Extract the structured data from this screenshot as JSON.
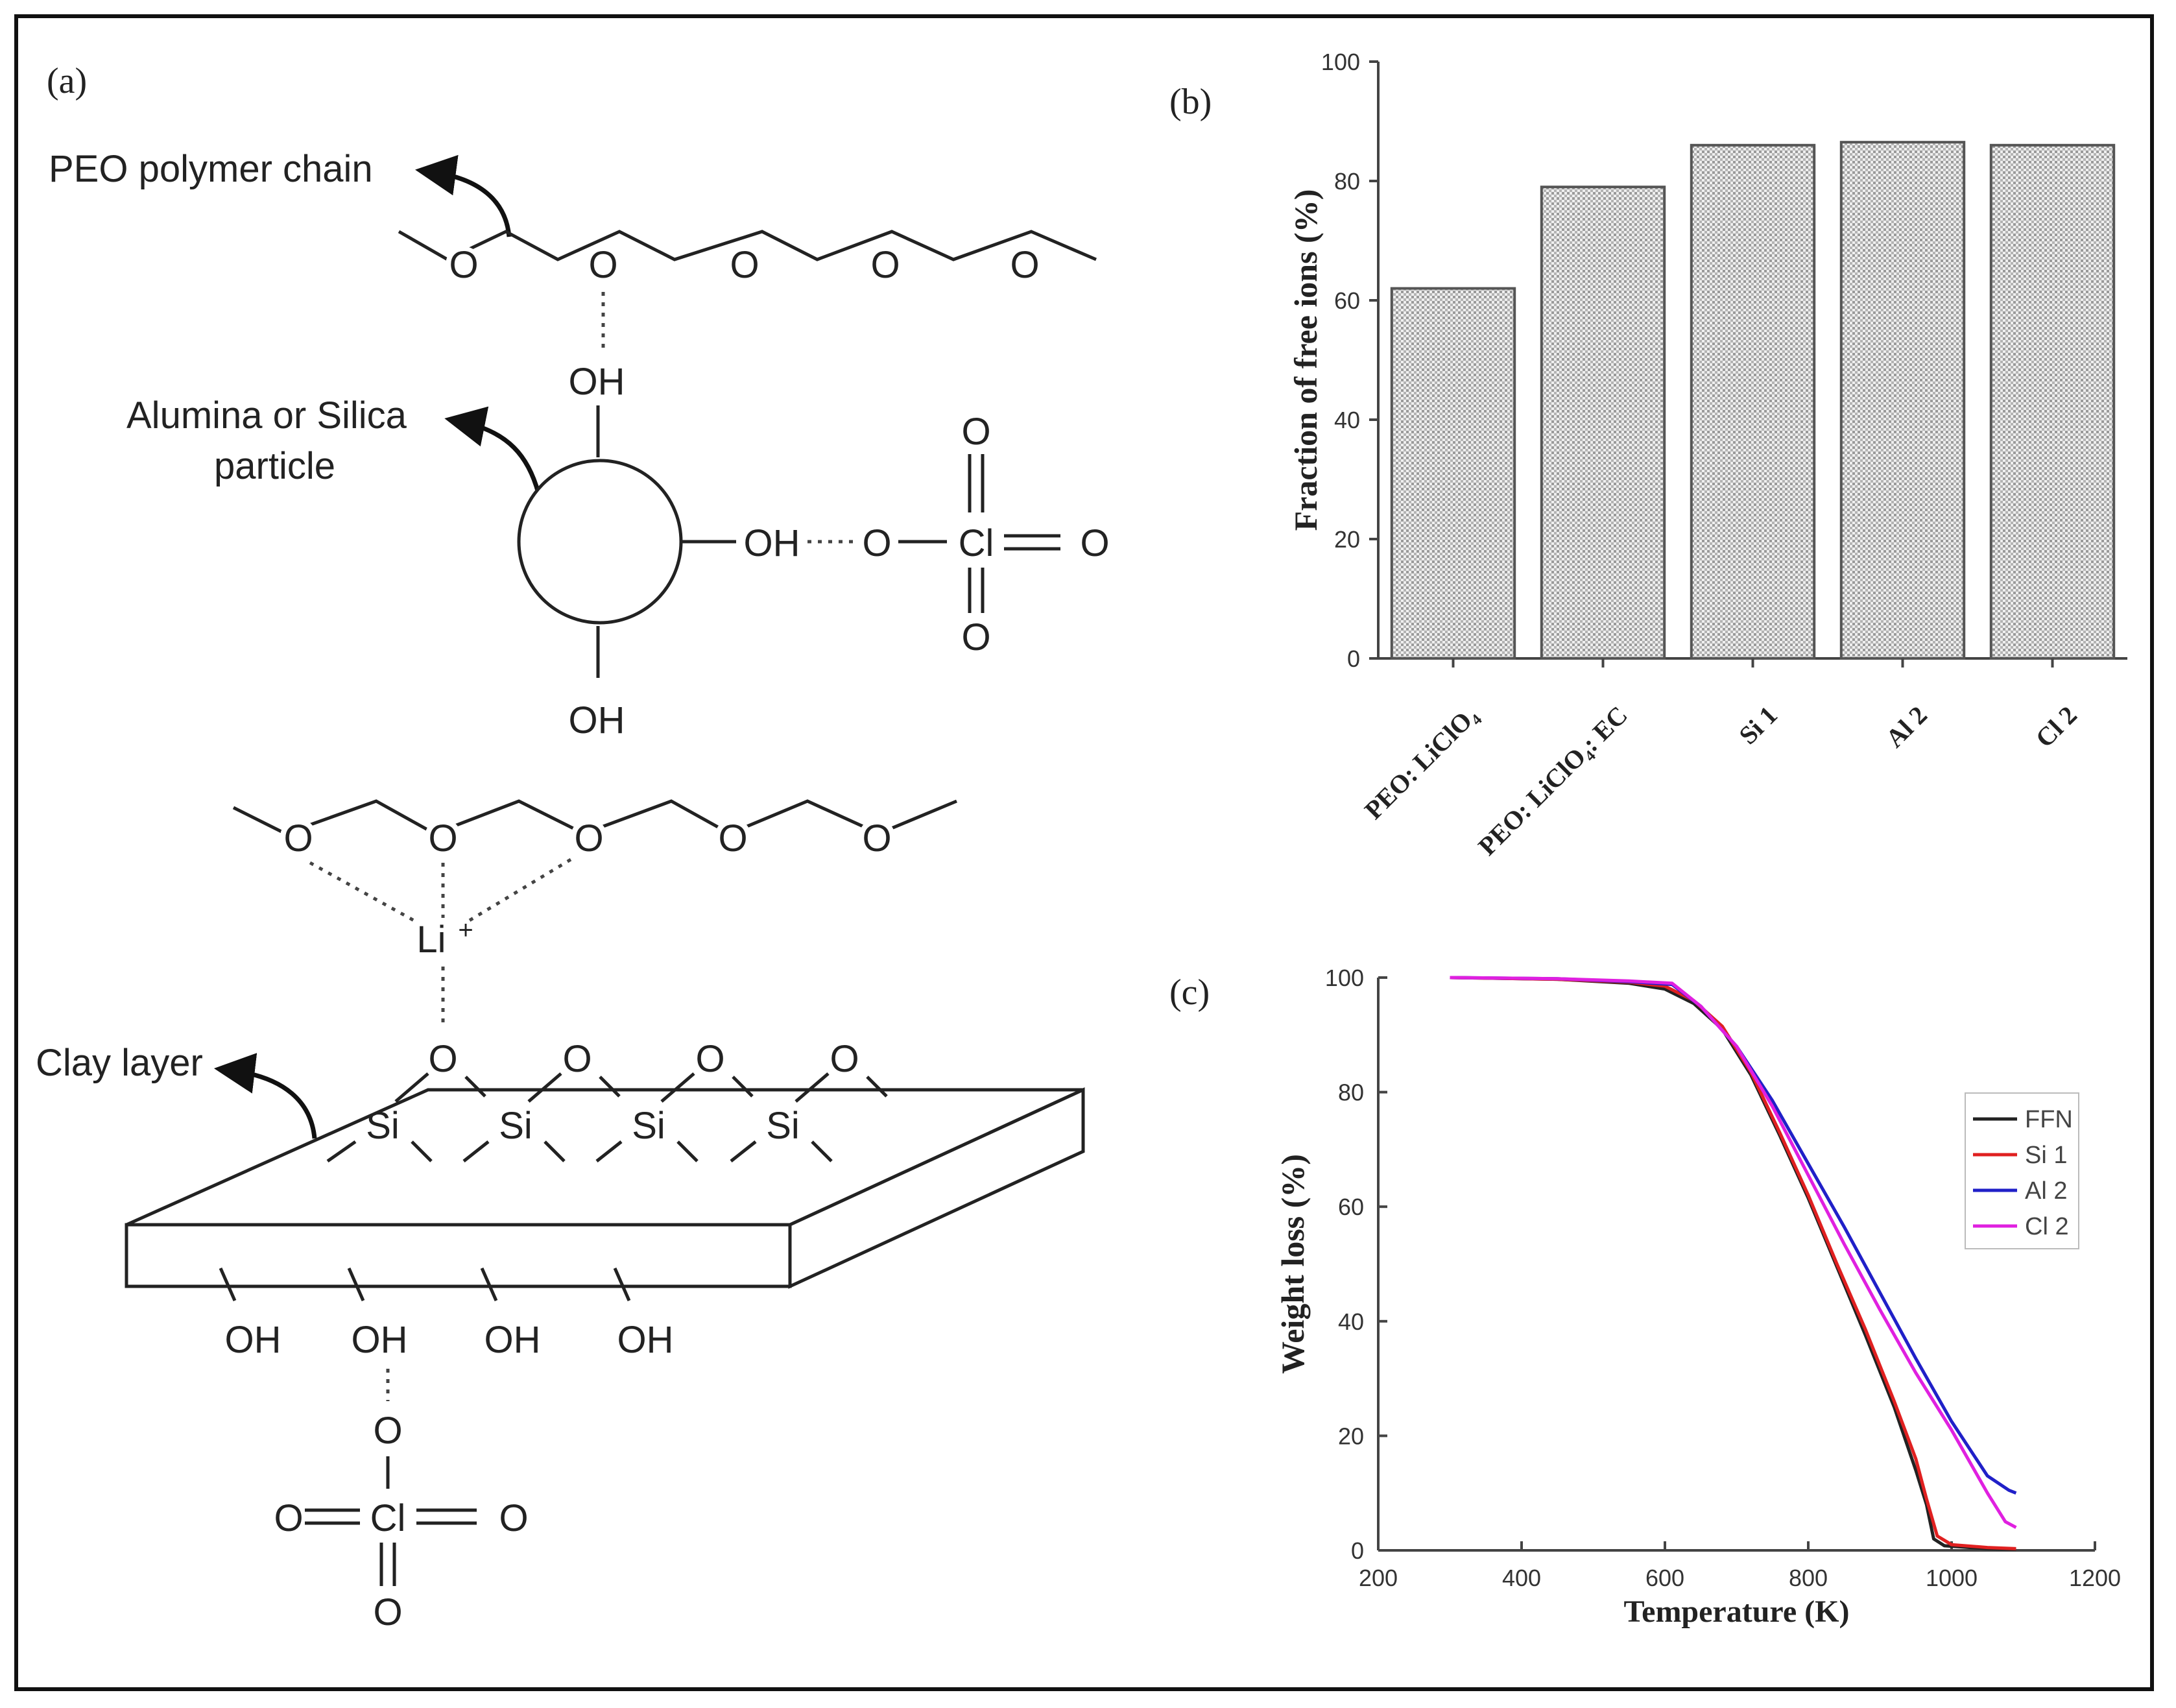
{
  "panel_a": {
    "label": "(a)",
    "peo_chain_label": "PEO polymer chain",
    "particle_label_line1": "Alumina or Silica",
    "particle_label_line2": "particle",
    "clay_label": "Clay layer",
    "oxygen": "O",
    "hydroxyl": "OH",
    "hydroxyl_bonded": "-OH",
    "chlorine": "Cl",
    "silicon": "Si",
    "lithium": "Li",
    "plus": "+"
  },
  "panel_b": {
    "label": "(b)"
  },
  "panel_c": {
    "label": "(c)"
  },
  "chart_data": [
    {
      "type": "bar",
      "panel": "b",
      "categories": [
        "PEO: LiClO₄",
        "PEO: LiClO₄: EC",
        "Si 1",
        "Al 2",
        "Cl 2"
      ],
      "values": [
        62,
        79,
        86,
        86.5,
        86
      ],
      "ylabel": "Fraction of free ions  (%)",
      "xlabel": "",
      "ylim": [
        0,
        100
      ],
      "yticks": [
        0,
        20,
        40,
        60,
        80,
        100
      ],
      "colors": {
        "bar_fill": "#d6d6d6",
        "bar_edge": "#555555"
      }
    },
    {
      "type": "line",
      "panel": "c",
      "xlabel": "Temperature (K)",
      "ylabel": "Weight loss  (%)",
      "xlim": [
        200,
        1200
      ],
      "ylim": [
        0,
        100
      ],
      "xticks": [
        200,
        400,
        600,
        800,
        1000,
        1200
      ],
      "yticks": [
        0,
        20,
        40,
        60,
        80,
        100
      ],
      "legend_position": "right",
      "series": [
        {
          "name": "FFN",
          "color": "#222222",
          "x": [
            300,
            450,
            550,
            600,
            640,
            680,
            720,
            760,
            800,
            840,
            880,
            920,
            950,
            965,
            975,
            990,
            1050,
            1090
          ],
          "y": [
            100,
            99.7,
            99,
            98,
            95.5,
            91,
            83,
            72.5,
            61.5,
            49.5,
            37.5,
            25,
            14,
            8,
            2,
            0.8,
            0.3,
            0.2
          ]
        },
        {
          "name": "Si 1",
          "color": "#e02020",
          "x": [
            300,
            450,
            550,
            600,
            640,
            680,
            720,
            760,
            800,
            840,
            880,
            920,
            950,
            965,
            980,
            1000,
            1050,
            1090
          ],
          "y": [
            100,
            99.7,
            99.2,
            98.5,
            96,
            91.5,
            83.5,
            73,
            62,
            50,
            38.5,
            26,
            16,
            9,
            2.5,
            1,
            0.5,
            0.3
          ]
        },
        {
          "name": "Al 2",
          "color": "#2020c8",
          "x": [
            300,
            450,
            550,
            610,
            650,
            700,
            750,
            800,
            850,
            900,
            950,
            1000,
            1050,
            1080,
            1090
          ],
          "y": [
            100,
            99.8,
            99.3,
            98.8,
            95,
            88,
            78.5,
            67.5,
            56.5,
            45,
            33.5,
            22.5,
            13,
            10.5,
            10
          ]
        },
        {
          "name": "Cl 2",
          "color": "#e020e0",
          "x": [
            300,
            450,
            550,
            610,
            650,
            700,
            750,
            800,
            850,
            900,
            950,
            1000,
            1050,
            1075,
            1090
          ],
          "y": [
            100,
            99.8,
            99.4,
            99,
            95,
            88,
            77.5,
            65.5,
            53.5,
            42,
            31,
            21,
            10,
            5,
            4
          ]
        }
      ]
    }
  ]
}
